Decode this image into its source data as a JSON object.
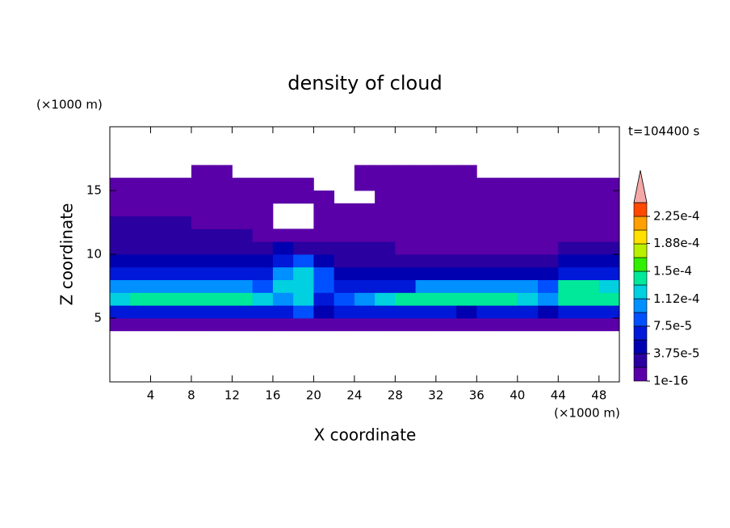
{
  "chart_data": {
    "type": "contour",
    "title": "density of cloud",
    "y_unit": "(×1000 m)",
    "x_unit": "(×1000 m)",
    "annotation": "t=104400 s",
    "xlabel": "X coordinate",
    "ylabel": "Z coordinate",
    "xlim": [
      0,
      50
    ],
    "ylim": [
      0,
      20
    ],
    "xticks": [
      4,
      8,
      12,
      16,
      20,
      24,
      28,
      32,
      36,
      40,
      44,
      48
    ],
    "yticks": [
      5,
      10,
      15
    ],
    "x": [
      1,
      3,
      5,
      7,
      9,
      11,
      13,
      15,
      17,
      19,
      21,
      23,
      25,
      27,
      29,
      31,
      33,
      35,
      37,
      39,
      41,
      43,
      45,
      47,
      49
    ],
    "y": [
      4.5,
      5.5,
      6.5,
      7.5,
      8.5,
      9.5,
      10.5,
      11.5,
      12.5,
      13.5,
      14.5,
      15.5,
      16.5
    ],
    "z": [
      [
        1e-05,
        1e-05,
        1e-05,
        1e-05,
        1e-05,
        1e-05,
        1e-05,
        1e-05,
        1e-05,
        1e-05,
        1e-05,
        1e-05,
        1e-05,
        1e-05,
        1e-05,
        1e-05,
        1e-05,
        1e-05,
        1e-05,
        1e-05,
        1e-05,
        1e-05,
        1e-05,
        1e-05,
        1e-05
      ],
      [
        6.5e-05,
        6.5e-05,
        6.5e-05,
        6.5e-05,
        6.5e-05,
        6.5e-05,
        6.5e-05,
        6.5e-05,
        6.5e-05,
        8.5e-05,
        5e-05,
        6.5e-05,
        6.5e-05,
        6.5e-05,
        6.5e-05,
        6.5e-05,
        6.5e-05,
        5e-05,
        6.5e-05,
        6.5e-05,
        6.5e-05,
        5e-05,
        6.5e-05,
        6.5e-05,
        6.5e-05
      ],
      [
        0.00012,
        0.00014,
        0.00014,
        0.00014,
        0.00014,
        0.00014,
        0.00014,
        0.00012,
        0.0001,
        0.00012,
        6.5e-05,
        8.5e-05,
        0.0001,
        0.00012,
        0.00014,
        0.00014,
        0.00014,
        0.00014,
        0.00014,
        0.00014,
        0.00012,
        0.0001,
        0.00014,
        0.00014,
        0.00014
      ],
      [
        0.0001,
        0.0001,
        0.0001,
        0.0001,
        0.0001,
        0.0001,
        0.0001,
        8.5e-05,
        0.00012,
        0.00012,
        8.5e-05,
        6.5e-05,
        6.5e-05,
        6.5e-05,
        6.5e-05,
        0.0001,
        0.0001,
        0.0001,
        0.0001,
        0.0001,
        0.0001,
        8.5e-05,
        0.00014,
        0.00014,
        0.00012
      ],
      [
        6.5e-05,
        6.5e-05,
        6.5e-05,
        6.5e-05,
        6.5e-05,
        6.5e-05,
        6.5e-05,
        6.5e-05,
        0.0001,
        0.00012,
        8.5e-05,
        5e-05,
        5e-05,
        5e-05,
        5e-05,
        5e-05,
        5e-05,
        5e-05,
        5e-05,
        5e-05,
        5e-05,
        5e-05,
        6.5e-05,
        6.5e-05,
        6.5e-05
      ],
      [
        5e-05,
        5e-05,
        5e-05,
        5e-05,
        5e-05,
        5e-05,
        5e-05,
        5e-05,
        6.5e-05,
        8.5e-05,
        5e-05,
        3e-05,
        3e-05,
        3e-05,
        3e-05,
        3e-05,
        3e-05,
        3e-05,
        3e-05,
        3e-05,
        3e-05,
        3e-05,
        5e-05,
        5e-05,
        5e-05
      ],
      [
        3e-05,
        3e-05,
        3e-05,
        3e-05,
        3e-05,
        3e-05,
        3e-05,
        3e-05,
        5e-05,
        3e-05,
        3e-05,
        3e-05,
        3e-05,
        3e-05,
        1e-05,
        1e-05,
        1e-05,
        1e-05,
        1e-05,
        1e-05,
        1e-05,
        1e-05,
        3e-05,
        3e-05,
        3e-05
      ],
      [
        3e-05,
        3e-05,
        3e-05,
        3e-05,
        3e-05,
        3e-05,
        3e-05,
        1e-05,
        1e-05,
        1e-05,
        1e-05,
        1e-05,
        1e-05,
        1e-05,
        1e-05,
        1e-05,
        1e-05,
        1e-05,
        1e-05,
        1e-05,
        1e-05,
        1e-05,
        1e-05,
        1e-05,
        1e-05
      ],
      [
        3e-05,
        3e-05,
        3e-05,
        3e-05,
        1e-05,
        1e-05,
        1e-05,
        1e-05,
        0,
        0,
        1e-05,
        1e-05,
        1e-05,
        1e-05,
        1e-05,
        1e-05,
        1e-05,
        1e-05,
        1e-05,
        1e-05,
        1e-05,
        1e-05,
        1e-05,
        1e-05,
        1e-05
      ],
      [
        1e-05,
        1e-05,
        1e-05,
        1e-05,
        1e-05,
        1e-05,
        1e-05,
        1e-05,
        0,
        0,
        1e-05,
        1e-05,
        1e-05,
        1e-05,
        1e-05,
        1e-05,
        1e-05,
        1e-05,
        1e-05,
        1e-05,
        1e-05,
        1e-05,
        1e-05,
        1e-05,
        1e-05
      ],
      [
        1e-05,
        1e-05,
        1e-05,
        1e-05,
        1e-05,
        1e-05,
        1e-05,
        1e-05,
        1e-05,
        1e-05,
        1e-05,
        0,
        0,
        1e-05,
        1e-05,
        1e-05,
        1e-05,
        1e-05,
        1e-05,
        1e-05,
        1e-05,
        1e-05,
        1e-05,
        1e-05,
        1e-05
      ],
      [
        1e-05,
        1e-05,
        1e-05,
        1e-05,
        1e-05,
        1e-05,
        1e-05,
        1e-05,
        1e-05,
        1e-05,
        0,
        0,
        1e-05,
        1e-05,
        1e-05,
        1e-05,
        1e-05,
        1e-05,
        1e-05,
        1e-05,
        1e-05,
        1e-05,
        1e-05,
        1e-05,
        1e-05
      ],
      [
        0,
        0,
        0,
        0,
        1e-05,
        1e-05,
        0,
        0,
        0,
        0,
        0,
        0,
        1e-05,
        1e-05,
        1e-05,
        1e-05,
        1e-05,
        1e-05,
        0,
        0,
        0,
        0,
        0,
        0,
        0
      ]
    ],
    "levels": [
      1e-16,
      1.875e-05,
      3.75e-05,
      5.625e-05,
      7.5e-05,
      9.375e-05,
      0.0001125,
      0.00013125,
      0.00015,
      0.00016875,
      0.0001875,
      0.00020625,
      0.000225,
      0.00024375
    ],
    "colors": [
      "#5a00a8",
      "#2a00a0",
      "#0000b0",
      "#0018d8",
      "#0050ff",
      "#0090ff",
      "#00d0e0",
      "#00e89a",
      "#30f000",
      "#b8f000",
      "#ffe000",
      "#ffa000",
      "#ff4800"
    ],
    "over_color": "#f4a8a8",
    "cticks": [
      1e-16,
      {
        "value": 3.75e-05,
        "label": "3.75e-5"
      },
      {
        "value": 7.5e-05,
        "label": "7.5e-5"
      },
      {
        "value": 0.000112,
        "label": "1.12e-4"
      },
      {
        "value": 0.00015,
        "label": "1.5e-4"
      },
      {
        "value": 0.000188,
        "label": "1.88e-4"
      },
      {
        "value": 0.000225,
        "label": "2.25e-4"
      }
    ]
  }
}
